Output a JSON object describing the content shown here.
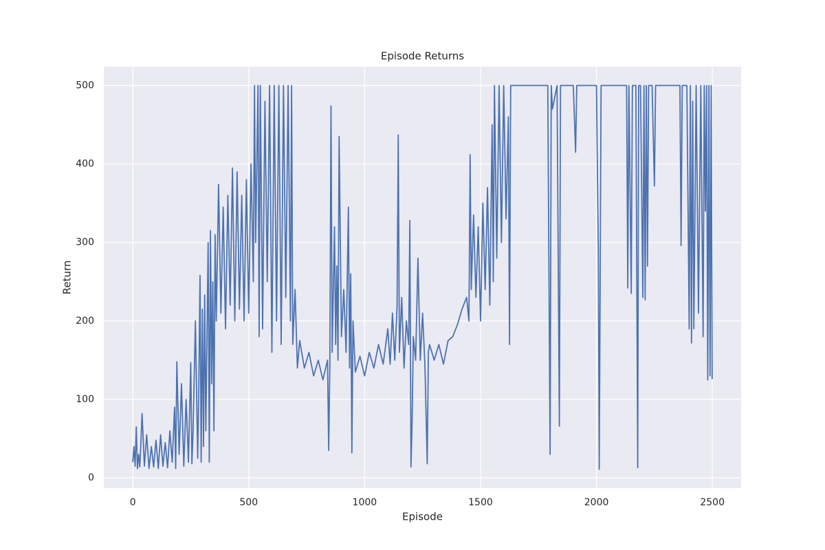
{
  "chart_data": {
    "type": "line",
    "title": "Episode Returns",
    "x_label": "Episode",
    "y_label": "Return",
    "x": [
      0,
      5,
      10,
      15,
      20,
      25,
      30,
      35,
      40,
      50,
      60,
      70,
      80,
      90,
      100,
      110,
      120,
      130,
      140,
      150,
      160,
      170,
      180,
      185,
      190,
      200,
      210,
      220,
      230,
      240,
      250,
      255,
      260,
      270,
      280,
      285,
      290,
      295,
      300,
      305,
      310,
      315,
      320,
      325,
      330,
      335,
      340,
      345,
      350,
      355,
      360,
      370,
      380,
      390,
      400,
      410,
      420,
      430,
      440,
      450,
      460,
      470,
      480,
      490,
      500,
      510,
      520,
      525,
      530,
      540,
      545,
      550,
      560,
      570,
      580,
      590,
      600,
      610,
      620,
      630,
      640,
      650,
      660,
      670,
      680,
      685,
      690,
      700,
      710,
      720,
      740,
      760,
      780,
      800,
      820,
      840,
      845,
      850,
      855,
      860,
      870,
      875,
      880,
      885,
      890,
      900,
      910,
      920,
      930,
      935,
      940,
      945,
      950,
      960,
      980,
      1000,
      1020,
      1040,
      1060,
      1080,
      1100,
      1110,
      1120,
      1130,
      1140,
      1145,
      1150,
      1160,
      1170,
      1180,
      1190,
      1195,
      1200,
      1205,
      1210,
      1220,
      1230,
      1240,
      1250,
      1260,
      1270,
      1275,
      1280,
      1300,
      1320,
      1340,
      1360,
      1380,
      1400,
      1420,
      1440,
      1450,
      1455,
      1460,
      1470,
      1480,
      1490,
      1500,
      1510,
      1520,
      1530,
      1540,
      1550,
      1555,
      1560,
      1570,
      1580,
      1590,
      1600,
      1610,
      1620,
      1625,
      1630,
      1640,
      1700,
      1790,
      1800,
      1805,
      1810,
      1830,
      1840,
      1845,
      1850,
      1900,
      1910,
      1915,
      2000,
      2008,
      2012,
      2020,
      2130,
      2135,
      2140,
      2150,
      2155,
      2170,
      2178,
      2182,
      2190,
      2200,
      2205,
      2210,
      2215,
      2220,
      2225,
      2240,
      2250,
      2255,
      2300,
      2360,
      2365,
      2370,
      2390,
      2400,
      2405,
      2410,
      2415,
      2420,
      2430,
      2440,
      2450,
      2460,
      2465,
      2470,
      2475,
      2480,
      2485,
      2490,
      2495,
      2499
    ],
    "values": [
      20,
      40,
      15,
      65,
      12,
      30,
      14,
      45,
      82,
      15,
      55,
      12,
      40,
      14,
      48,
      12,
      55,
      15,
      45,
      13,
      60,
      20,
      90,
      12,
      148,
      30,
      120,
      15,
      100,
      20,
      147,
      18,
      60,
      200,
      25,
      120,
      258,
      20,
      215,
      40,
      233,
      60,
      180,
      300,
      20,
      315,
      120,
      250,
      60,
      310,
      200,
      374,
      210,
      345,
      190,
      360,
      220,
      395,
      200,
      390,
      215,
      360,
      200,
      380,
      210,
      400,
      250,
      500,
      300,
      500,
      180,
      500,
      190,
      480,
      250,
      500,
      160,
      500,
      200,
      500,
      170,
      500,
      230,
      500,
      200,
      500,
      170,
      240,
      140,
      175,
      140,
      160,
      130,
      150,
      125,
      150,
      35,
      145,
      474,
      160,
      320,
      170,
      270,
      150,
      435,
      180,
      240,
      160,
      345,
      140,
      260,
      32,
      200,
      135,
      155,
      130,
      160,
      140,
      170,
      145,
      190,
      145,
      210,
      150,
      220,
      437,
      160,
      230,
      140,
      200,
      170,
      328,
      14,
      75,
      180,
      150,
      280,
      150,
      210,
      145,
      18,
      160,
      170,
      150,
      170,
      145,
      175,
      180,
      195,
      215,
      230,
      200,
      412,
      240,
      335,
      230,
      320,
      200,
      350,
      240,
      370,
      220,
      450,
      250,
      500,
      280,
      500,
      300,
      500,
      330,
      460,
      170,
      500,
      500,
      500,
      500,
      30,
      500,
      470,
      500,
      66,
      500,
      500,
      500,
      415,
      500,
      500,
      290,
      11,
      500,
      500,
      242,
      500,
      235,
      500,
      500,
      13,
      500,
      500,
      230,
      500,
      227,
      500,
      270,
      500,
      500,
      372,
      500,
      500,
      500,
      296,
      500,
      500,
      190,
      500,
      172,
      480,
      190,
      500,
      210,
      500,
      180,
      500,
      340,
      500,
      125,
      500,
      130,
      500,
      126
    ],
    "color": "#4c72b0",
    "xlim": [
      -125,
      2624
    ],
    "ylim": [
      -13,
      524
    ],
    "xticks": [
      0,
      500,
      1000,
      1500,
      2000,
      2500
    ],
    "yticks": [
      0,
      100,
      200,
      300,
      400,
      500
    ],
    "grid": true
  }
}
